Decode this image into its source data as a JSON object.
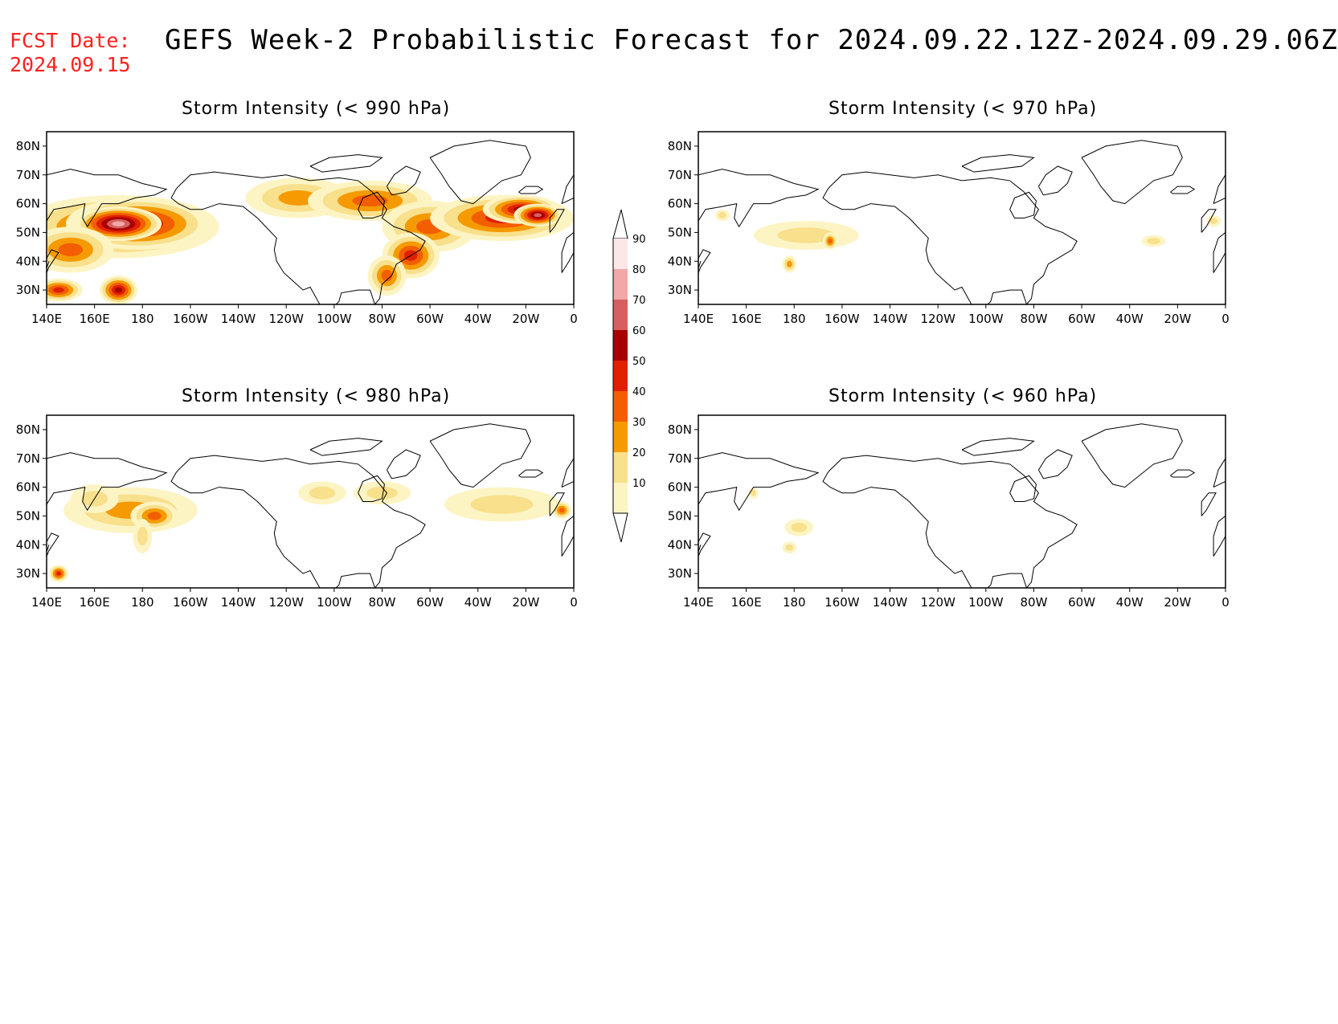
{
  "header": {
    "fcst_label": "FCST Date:",
    "fcst_date": "2024.09.15",
    "title": "GEFS Week-2 Probabilistic Forecast for 2024.09.22.12Z-2024.09.29.06Z"
  },
  "axes": {
    "x_ticks": [
      "140E",
      "160E",
      "180",
      "160W",
      "140W",
      "120W",
      "100W",
      "80W",
      "60W",
      "40W",
      "20W",
      "0"
    ],
    "y_ticks": [
      "80N",
      "70N",
      "60N",
      "50N",
      "40N",
      "30N"
    ]
  },
  "colorbar": {
    "labels": [
      "90",
      "80",
      "70",
      "60",
      "50",
      "40",
      "30",
      "20",
      "10"
    ],
    "colors": [
      "#fde6e6",
      "#f0a8a8",
      "#d66060",
      "#a80000",
      "#e02000",
      "#f25e00",
      "#f59a00",
      "#f8e08c",
      "#fdf4c4"
    ]
  },
  "panels": [
    {
      "id": "p990",
      "title": "Storm Intensity (< 990 hPa)",
      "blobs": [
        {
          "lon": 170,
          "lat": 52,
          "w": 42,
          "h": 11,
          "level": 4
        },
        {
          "lon": 178,
          "lat": 53,
          "w": 30,
          "h": 9,
          "level": 5
        },
        {
          "lon": 170,
          "lat": 53,
          "w": 18,
          "h": 6,
          "level": 7
        },
        {
          "lon": 150,
          "lat": 44,
          "w": 18,
          "h": 8,
          "level": 3
        },
        {
          "lon": 145,
          "lat": 30,
          "w": 10,
          "h": 4,
          "level": 4
        },
        {
          "lon": 170,
          "lat": 30,
          "w": 8,
          "h": 5,
          "level": 5
        },
        {
          "lon": 245,
          "lat": 62,
          "w": 22,
          "h": 7,
          "level": 2
        },
        {
          "lon": 275,
          "lat": 61,
          "w": 26,
          "h": 7,
          "level": 3
        },
        {
          "lon": 300,
          "lat": 52,
          "w": 20,
          "h": 9,
          "level": 3
        },
        {
          "lon": 292,
          "lat": 42,
          "w": 12,
          "h": 8,
          "level": 4
        },
        {
          "lon": 282,
          "lat": 35,
          "w": 8,
          "h": 7,
          "level": 3
        },
        {
          "lon": 330,
          "lat": 55,
          "w": 30,
          "h": 8,
          "level": 4
        },
        {
          "lon": 338,
          "lat": 58,
          "w": 16,
          "h": 5,
          "level": 5
        },
        {
          "lon": 345,
          "lat": 56,
          "w": 10,
          "h": 4,
          "level": 6
        }
      ]
    },
    {
      "id": "p970",
      "title": "Storm Intensity (< 970 hPa)",
      "blobs": [
        {
          "lon": 185,
          "lat": 49,
          "w": 22,
          "h": 5,
          "level": 1
        },
        {
          "lon": 178,
          "lat": 39,
          "w": 3,
          "h": 3,
          "level": 2
        },
        {
          "lon": 195,
          "lat": 47,
          "w": 3,
          "h": 3,
          "level": 3
        },
        {
          "lon": 150,
          "lat": 56,
          "w": 3,
          "h": 2,
          "level": 1
        },
        {
          "lon": 330,
          "lat": 47,
          "w": 5,
          "h": 2,
          "level": 1
        },
        {
          "lon": 355,
          "lat": 54,
          "w": 3,
          "h": 2,
          "level": 1
        }
      ]
    },
    {
      "id": "p980",
      "title": "Storm Intensity (< 980 hPa)",
      "blobs": [
        {
          "lon": 175,
          "lat": 52,
          "w": 28,
          "h": 8,
          "level": 2
        },
        {
          "lon": 185,
          "lat": 50,
          "w": 10,
          "h": 5,
          "level": 3
        },
        {
          "lon": 160,
          "lat": 56,
          "w": 10,
          "h": 5,
          "level": 1
        },
        {
          "lon": 180,
          "lat": 43,
          "w": 4,
          "h": 6,
          "level": 1
        },
        {
          "lon": 145,
          "lat": 30,
          "w": 4,
          "h": 3,
          "level": 4
        },
        {
          "lon": 330,
          "lat": 54,
          "w": 24,
          "h": 6,
          "level": 1
        },
        {
          "lon": 255,
          "lat": 58,
          "w": 10,
          "h": 4,
          "level": 1
        },
        {
          "lon": 280,
          "lat": 58,
          "w": 12,
          "h": 4,
          "level": 1
        },
        {
          "lon": 355,
          "lat": 52,
          "w": 4,
          "h": 3,
          "level": 3
        }
      ]
    },
    {
      "id": "p960",
      "title": "Storm Intensity (< 960 hPa)",
      "blobs": [
        {
          "lon": 182,
          "lat": 46,
          "w": 6,
          "h": 3,
          "level": 1
        },
        {
          "lon": 178,
          "lat": 39,
          "w": 3,
          "h": 2,
          "level": 1
        },
        {
          "lon": 163,
          "lat": 58,
          "w": 2,
          "h": 2,
          "level": 1
        }
      ]
    }
  ]
}
